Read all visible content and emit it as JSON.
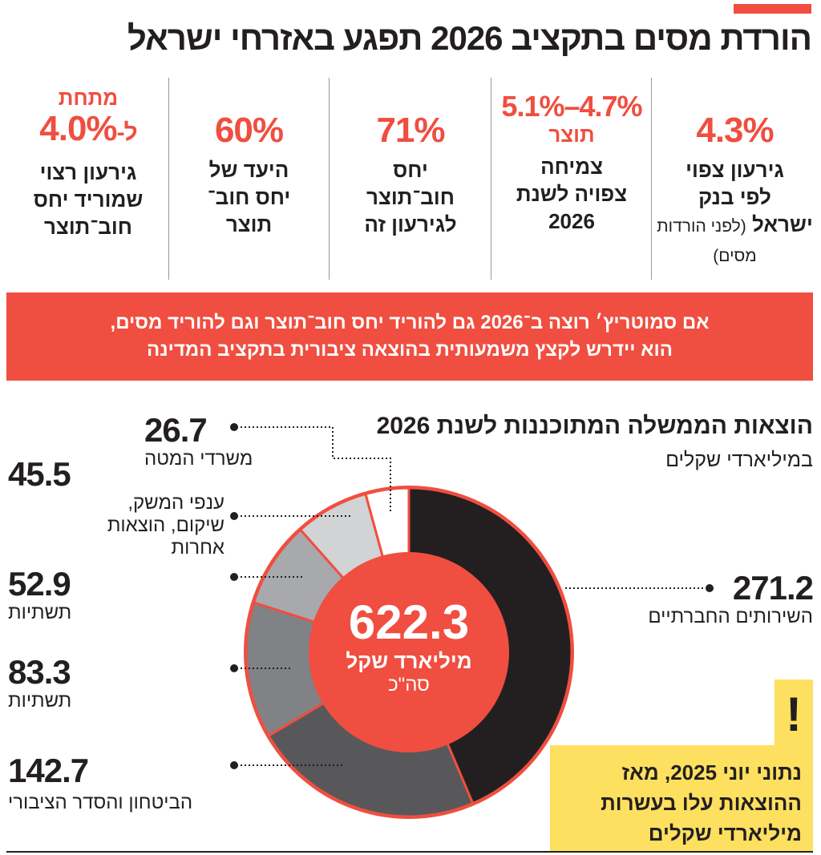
{
  "header": {
    "title": "הורדת מסים בתקציב 2026 תפגע באזרחי ישראל",
    "accent": "#f04e40"
  },
  "stats": [
    {
      "value": "4.3%",
      "line1": "גירעון צפוי",
      "line2": "לפי בנק",
      "line3": "ישראל",
      "note": "(לפני הורדות מסים)"
    },
    {
      "value": "5.1%–4.7%",
      "sub": "תוצר",
      "line1": "צמיחה",
      "line2": "צפויה לשנת",
      "line3": "2026"
    },
    {
      "value": "71%",
      "line1": "יחס",
      "line2": "חוב־תוצר",
      "line3": "לגירעון זה"
    },
    {
      "value": "60%",
      "line1": "היעד של",
      "line2": "יחס חוב־",
      "line3": "תוצר"
    },
    {
      "pre": "מתחת",
      "value": "4.0%",
      "value_prefix": "ל-",
      "line1": "גירעון רצוי",
      "line2": "שמוריד יחס",
      "line3": "חוב־תוצר"
    }
  ],
  "banner": {
    "line1": "אם סמוטריץ׳ רוצה ב־2026 גם להוריד יחס חוב־תוצר וגם להוריד מסים,",
    "line2": "הוא יידרש לקצץ משמעותית בהוצאה ציבורית בתקציב המדינה"
  },
  "chart_data": {
    "type": "pie",
    "donut": true,
    "title": "הוצאות הממשלה המתוכננות לשנת 2026",
    "subtitle": "במיליארדי שקלים",
    "center": {
      "value": "622.3",
      "unit": "מיליארד שקל",
      "label": "סה\"כ"
    },
    "categories": [
      "השירותים החברתיים",
      "הביטחון והסדר הציבורי",
      "תשתיות",
      "תשתיות",
      "ענפי המשק, שיקום, הוצאות אחרות",
      "משרדי המטה"
    ],
    "values": [
      271.2,
      142.7,
      83.3,
      52.9,
      45.5,
      26.7
    ],
    "value_labels": [
      "271.2",
      "142.7",
      "83.3",
      "52.9",
      "45.5",
      "26.7"
    ],
    "colors": [
      "#231f20",
      "#58585a",
      "#808285",
      "#a7a9ac",
      "#d1d3d4",
      "#ffffff"
    ],
    "center_color": "#f04e40",
    "direction": "clockwise-from-top"
  },
  "note": {
    "icon": "exclamation-icon",
    "mark": "!",
    "line1": "נתוני יוני 2025, מאז",
    "line2": "ההוצאות עלו בעשרות",
    "line3": "מיליארדי שקלים",
    "color": "#fde05f"
  }
}
